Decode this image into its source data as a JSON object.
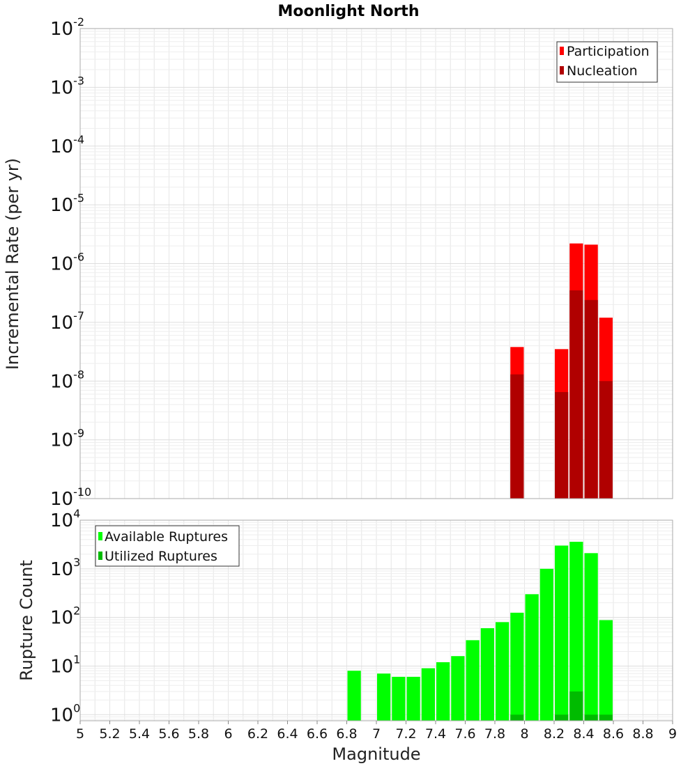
{
  "chart_data": [
    {
      "type": "bar",
      "title": "Moonlight North",
      "xlabel": "",
      "ylabel": "Incremental Rate (per yr)",
      "y_scale": "log",
      "ylim": [
        1e-10,
        0.01
      ],
      "xlim": [
        5,
        9
      ],
      "grid": true,
      "legend_position": "top-right",
      "bin_width": 0.1,
      "y_tick_exponents": [
        -10,
        -9,
        -8,
        -7,
        -6,
        -5,
        -4,
        -3,
        -2
      ],
      "series": [
        {
          "name": "Participation",
          "color": "#ff0000",
          "x": [
            7.95,
            8.25,
            8.35,
            8.45,
            8.55
          ],
          "values": [
            3.8e-08,
            3.5e-08,
            2.2e-06,
            2.1e-06,
            1.2e-07
          ]
        },
        {
          "name": "Nucleation",
          "color": "#b00000",
          "x": [
            7.95,
            8.25,
            8.35,
            8.45,
            8.55
          ],
          "values": [
            1.3e-08,
            6.5e-09,
            3.5e-07,
            2.4e-07,
            1e-08
          ]
        }
      ]
    },
    {
      "type": "bar",
      "title": "",
      "xlabel": "Magnitude",
      "ylabel": "Rupture Count",
      "y_scale": "log",
      "ylim": [
        0.75,
        10000
      ],
      "xlim": [
        5,
        9
      ],
      "grid": true,
      "legend_position": "top-left",
      "bin_width": 0.1,
      "y_tick_exponents": [
        0,
        1,
        2,
        3,
        4
      ],
      "x_ticks": [
        "5",
        "5.2",
        "5.4",
        "5.6",
        "5.8",
        "6",
        "6.2",
        "6.4",
        "6.6",
        "6.8",
        "7",
        "7.2",
        "7.4",
        "7.6",
        "7.8",
        "8",
        "8.2",
        "8.4",
        "8.6",
        "8.8",
        "9"
      ],
      "series": [
        {
          "name": "Available Ruptures",
          "color": "#00ff00",
          "x": [
            6.85,
            7.05,
            7.15,
            7.25,
            7.35,
            7.45,
            7.55,
            7.65,
            7.75,
            7.85,
            7.95,
            8.05,
            8.15,
            8.25,
            8.35,
            8.45,
            8.55
          ],
          "values": [
            8,
            7,
            6,
            6,
            9,
            12,
            16,
            34,
            60,
            80,
            125,
            300,
            1000,
            3000,
            3600,
            2100,
            88
          ]
        },
        {
          "name": "Utilized Ruptures",
          "color": "#00bb00",
          "x": [
            7.95,
            8.25,
            8.35,
            8.45,
            8.55
          ],
          "values": [
            1,
            1,
            3,
            1,
            1
          ]
        }
      ]
    }
  ]
}
